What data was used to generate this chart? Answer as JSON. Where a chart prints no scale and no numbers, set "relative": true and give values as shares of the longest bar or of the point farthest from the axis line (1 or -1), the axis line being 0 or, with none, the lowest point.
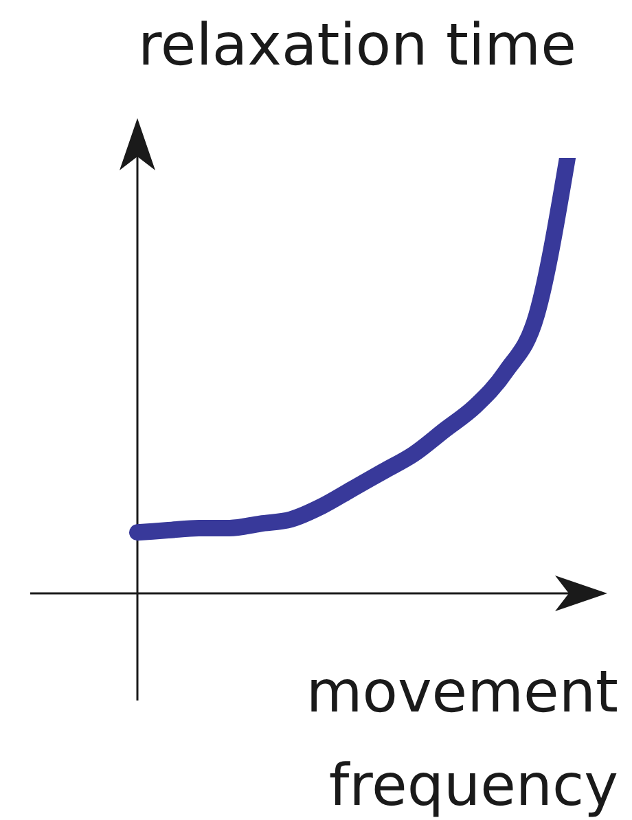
{
  "chart_data": {
    "type": "line",
    "title": "relaxation time",
    "xlabel": "movement frequency",
    "categories": [
      null,
      null,
      null,
      null,
      null,
      null,
      null,
      null,
      null,
      null,
      null,
      null,
      null,
      null,
      null
    ],
    "values": [
      0.14,
      0.145,
      0.15,
      0.15,
      0.16,
      0.17,
      0.2,
      0.24,
      0.28,
      0.32,
      0.375,
      0.43,
      0.51,
      0.64,
      1.0
    ],
    "color": "#38399a",
    "relative": true,
    "marker": "none",
    "line_style": "solid"
  }
}
